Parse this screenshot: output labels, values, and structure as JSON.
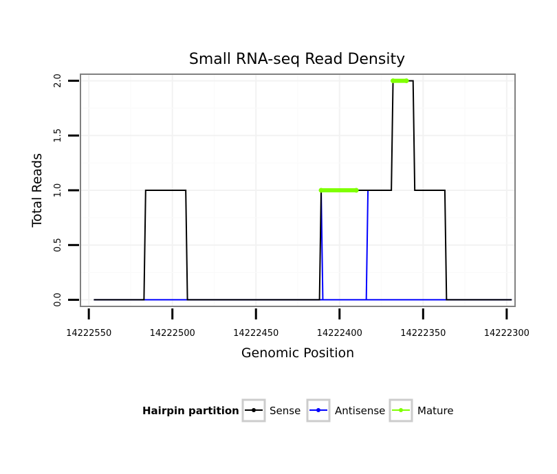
{
  "chart_data": {
    "type": "line",
    "title": "Small RNA-seq Read Density",
    "xlabel": "Genomic Position",
    "ylabel": "Total Reads",
    "x_reversed": true,
    "xlim": [
      14222555,
      14222295
    ],
    "ylim": [
      -0.06,
      2.06
    ],
    "x_ticks": [
      14222550,
      14222500,
      14222450,
      14222400,
      14222350,
      14222300
    ],
    "x_tick_labels": [
      "14222550",
      "14222500",
      "14222450",
      "14222400",
      "14222350",
      "14222300"
    ],
    "y_ticks": [
      0,
      0.5,
      1,
      1.5,
      2
    ],
    "y_tick_labels": [
      "0.0",
      "0.5",
      "1.0",
      "1.5",
      "2.0"
    ],
    "grid": true,
    "legend": {
      "title": "Hairpin partition",
      "position": "bottom",
      "entries": [
        "Sense",
        "Antisense",
        "Mature"
      ]
    },
    "series": [
      {
        "name": "Antisense",
        "color": "#0000ff",
        "x": [
          14222547,
          14222384,
          14222383,
          14222411,
          14222410,
          14222436,
          14222435,
          14222297
        ],
        "y": [
          0,
          0,
          1,
          1,
          0,
          0,
          0,
          0
        ]
      },
      {
        "name": "Sense",
        "color": "#000000",
        "x": [
          14222547,
          14222517,
          14222516,
          14222492,
          14222491,
          14222412,
          14222411,
          14222376,
          14222375,
          14222369,
          14222368,
          14222356,
          14222355,
          14222350,
          14222349,
          14222337,
          14222336,
          14222297
        ],
        "y": [
          0,
          0,
          1,
          1,
          0,
          0,
          1,
          1,
          1,
          1,
          2,
          2,
          1,
          1,
          1,
          1,
          0,
          0
        ]
      },
      {
        "name": "Mature",
        "color": "#7fff00",
        "segments": [
          {
            "x": [
              14222411,
              14222390
            ],
            "y": [
              1,
              1
            ]
          },
          {
            "x": [
              14222368,
              14222360
            ],
            "y": [
              2,
              2
            ]
          }
        ]
      }
    ]
  }
}
